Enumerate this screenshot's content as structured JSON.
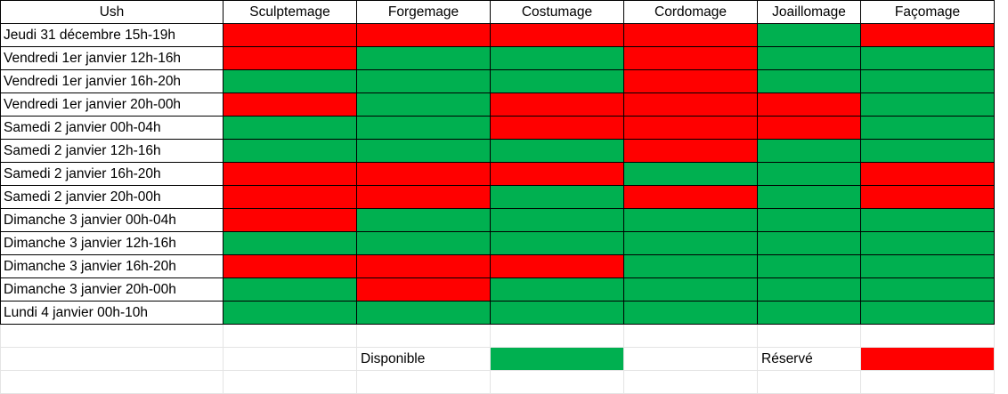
{
  "header": {
    "corner": "Ush",
    "columns": [
      "Sculptemage",
      "Forgemage",
      "Costumage",
      "Cordomage",
      "Joaillomage",
      "Façomage"
    ]
  },
  "colors": {
    "disponible": "#00b050",
    "reserve": "#ff0000"
  },
  "rows": [
    {
      "label": "Jeudi 31 décembre 15h-19h",
      "status": [
        "R",
        "R",
        "R",
        "R",
        "D",
        "R"
      ]
    },
    {
      "label": "Vendredi 1er janvier 12h-16h",
      "status": [
        "R",
        "D",
        "D",
        "R",
        "D",
        "D"
      ]
    },
    {
      "label": "Vendredi 1er janvier 16h-20h",
      "status": [
        "D",
        "D",
        "D",
        "R",
        "D",
        "D"
      ]
    },
    {
      "label": "Vendredi 1er janvier 20h-00h",
      "status": [
        "R",
        "D",
        "R",
        "R",
        "R",
        "D"
      ]
    },
    {
      "label": "Samedi 2 janvier 00h-04h",
      "status": [
        "D",
        "D",
        "R",
        "R",
        "R",
        "D"
      ]
    },
    {
      "label": "Samedi 2 janvier 12h-16h",
      "status": [
        "D",
        "D",
        "D",
        "R",
        "D",
        "D"
      ]
    },
    {
      "label": "Samedi 2 janvier 16h-20h",
      "status": [
        "R",
        "R",
        "R",
        "D",
        "D",
        "R"
      ]
    },
    {
      "label": "Samedi 2 janvier 20h-00h",
      "status": [
        "R",
        "R",
        "D",
        "R",
        "D",
        "R"
      ]
    },
    {
      "label": "Dimanche 3 janvier 00h-04h",
      "status": [
        "R",
        "D",
        "D",
        "D",
        "D",
        "D"
      ]
    },
    {
      "label": "Dimanche 3 janvier 12h-16h",
      "status": [
        "D",
        "D",
        "D",
        "D",
        "D",
        "D"
      ]
    },
    {
      "label": "Dimanche 3 janvier 16h-20h",
      "status": [
        "R",
        "R",
        "R",
        "D",
        "D",
        "D"
      ]
    },
    {
      "label": "Dimanche 3 janvier 20h-00h",
      "status": [
        "D",
        "R",
        "D",
        "D",
        "D",
        "D"
      ]
    },
    {
      "label": "Lundi 4 janvier 00h-10h",
      "status": [
        "D",
        "D",
        "D",
        "D",
        "D",
        "D"
      ]
    }
  ],
  "legend": {
    "available_label": "Disponible",
    "reserved_label": "Réservé"
  }
}
